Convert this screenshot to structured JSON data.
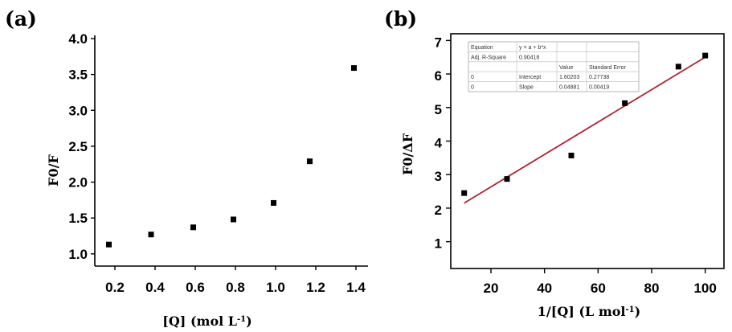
{
  "colors": {
    "axis": "#000000",
    "marker": "#000000",
    "fit_line": "#b22234",
    "background": "#ffffff"
  },
  "chart_data": [
    {
      "type": "scatter",
      "panel_label": "(a)",
      "title": "",
      "xlabel": "[Q] (mol L",
      "xlabel_sup": "-1",
      "xlabel_end": ")",
      "ylabel": "F0/F",
      "x_ticks": [
        "0.2",
        "0.4",
        "0.6",
        "0.8",
        "1.0",
        "1.2",
        "1.4"
      ],
      "y_ticks": [
        "1.0",
        "1.5",
        "2.0",
        "2.5",
        "3.0",
        "3.5",
        "4.0"
      ],
      "xlim": [
        0.1,
        1.46
      ],
      "ylim": [
        0.83,
        4.0
      ],
      "grid": false,
      "series": [
        {
          "x": [
            0.17,
            0.38,
            0.59,
            0.79,
            0.99,
            1.17,
            1.39
          ],
          "y": [
            1.13,
            1.27,
            1.37,
            1.48,
            1.71,
            2.29,
            3.59
          ]
        }
      ]
    },
    {
      "type": "scatter",
      "panel_label": "(b)",
      "title": "",
      "xlabel": "1/[Q] (L mol",
      "xlabel_sup": "-1",
      "xlabel_end": ")",
      "ylabel": "F0/ΔF",
      "x_ticks": [
        "20",
        "40",
        "60",
        "80",
        "100"
      ],
      "y_ticks": [
        "1",
        "2",
        "3",
        "4",
        "5",
        "6",
        "7"
      ],
      "xlim": [
        5,
        107
      ],
      "ylim": [
        0.2,
        7.2
      ],
      "grid": false,
      "series": [
        {
          "x": [
            10,
            26,
            50,
            70,
            90,
            100
          ],
          "y": [
            2.45,
            2.87,
            3.57,
            5.13,
            6.22,
            6.55
          ]
        }
      ],
      "fit_line": {
        "x": [
          10,
          101
        ],
        "y": [
          2.15,
          6.55
        ]
      },
      "fit_table": {
        "rows": [
          [
            "Equation",
            "y = a + b*x",
            "",
            ""
          ],
          [
            "Adj. R-Square",
            "0.90418",
            "",
            ""
          ],
          [
            "",
            "",
            "Value",
            "Standard Error"
          ],
          [
            "0",
            "Intercept",
            "1.60203",
            "0.27738"
          ],
          [
            "0",
            "Slope",
            "0.04881",
            "0.00419"
          ]
        ]
      }
    }
  ]
}
